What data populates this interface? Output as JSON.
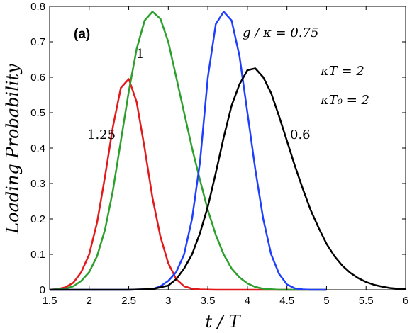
{
  "chart_data": {
    "type": "line",
    "panel_label": "(a)",
    "xlabel": "t / T",
    "ylabel": "Loading Probability",
    "xlim": [
      1.5,
      6
    ],
    "ylim": [
      0,
      0.8
    ],
    "xticks": [
      "1.5",
      "2",
      "2.5",
      "3",
      "3.5",
      "4",
      "4.5",
      "5",
      "5.5",
      "6"
    ],
    "yticks": [
      "0",
      "0.1",
      "0.2",
      "0.3",
      "0.4",
      "0.5",
      "0.6",
      "0.7",
      "0.8"
    ],
    "grid": false,
    "params": [
      "κT = 2",
      "κT₀ = 2"
    ],
    "series": [
      {
        "name": "1.25",
        "color": "#e31a1c",
        "points": [
          [
            1.5,
            0
          ],
          [
            1.6,
            0.002
          ],
          [
            1.7,
            0.007
          ],
          [
            1.8,
            0.02
          ],
          [
            1.9,
            0.05
          ],
          [
            2.0,
            0.1
          ],
          [
            2.1,
            0.19
          ],
          [
            2.2,
            0.32
          ],
          [
            2.3,
            0.46
          ],
          [
            2.4,
            0.57
          ],
          [
            2.5,
            0.595
          ],
          [
            2.6,
            0.53
          ],
          [
            2.7,
            0.4
          ],
          [
            2.8,
            0.26
          ],
          [
            2.9,
            0.15
          ],
          [
            3.0,
            0.075
          ],
          [
            3.1,
            0.03
          ],
          [
            3.2,
            0.01
          ],
          [
            3.3,
            0.003
          ],
          [
            3.4,
            0.001
          ],
          [
            3.6,
            0
          ],
          [
            4.0,
            0
          ],
          [
            4.5,
            0
          ],
          [
            5.0,
            0
          ]
        ]
      },
      {
        "name": "1",
        "color": "#2ca02c",
        "points": [
          [
            1.5,
            0
          ],
          [
            1.7,
            0.003
          ],
          [
            1.8,
            0.01
          ],
          [
            1.9,
            0.025
          ],
          [
            2.0,
            0.05
          ],
          [
            2.1,
            0.095
          ],
          [
            2.2,
            0.17
          ],
          [
            2.3,
            0.28
          ],
          [
            2.4,
            0.42
          ],
          [
            2.5,
            0.56
          ],
          [
            2.6,
            0.68
          ],
          [
            2.7,
            0.76
          ],
          [
            2.8,
            0.785
          ],
          [
            2.9,
            0.765
          ],
          [
            3.0,
            0.7
          ],
          [
            3.1,
            0.6
          ],
          [
            3.2,
            0.5
          ],
          [
            3.3,
            0.4
          ],
          [
            3.4,
            0.31
          ],
          [
            3.5,
            0.225
          ],
          [
            3.6,
            0.155
          ],
          [
            3.7,
            0.1
          ],
          [
            3.8,
            0.06
          ],
          [
            3.9,
            0.035
          ],
          [
            4.0,
            0.018
          ],
          [
            4.1,
            0.008
          ],
          [
            4.2,
            0.003
          ],
          [
            4.4,
            0
          ],
          [
            5.0,
            0
          ]
        ]
      },
      {
        "name": "g / κ = 0.75",
        "color": "#1f3fff",
        "points": [
          [
            1.5,
            0
          ],
          [
            2.5,
            0
          ],
          [
            2.8,
            0.002
          ],
          [
            2.9,
            0.01
          ],
          [
            3.0,
            0.025
          ],
          [
            3.1,
            0.05
          ],
          [
            3.2,
            0.1
          ],
          [
            3.3,
            0.2
          ],
          [
            3.4,
            0.36
          ],
          [
            3.5,
            0.6
          ],
          [
            3.6,
            0.75
          ],
          [
            3.7,
            0.785
          ],
          [
            3.8,
            0.76
          ],
          [
            3.9,
            0.66
          ],
          [
            4.0,
            0.5
          ],
          [
            4.1,
            0.34
          ],
          [
            4.2,
            0.2
          ],
          [
            4.3,
            0.1
          ],
          [
            4.4,
            0.045
          ],
          [
            4.5,
            0.015
          ],
          [
            4.6,
            0.004
          ],
          [
            4.7,
            0.001
          ],
          [
            4.8,
            0
          ],
          [
            5.0,
            0
          ]
        ]
      },
      {
        "name": "0.6",
        "color": "#000000",
        "points": [
          [
            1.5,
            0
          ],
          [
            2.5,
            0
          ],
          [
            2.8,
            0.002
          ],
          [
            3.0,
            0.012
          ],
          [
            3.1,
            0.03
          ],
          [
            3.2,
            0.06
          ],
          [
            3.3,
            0.1
          ],
          [
            3.4,
            0.16
          ],
          [
            3.5,
            0.235
          ],
          [
            3.6,
            0.33
          ],
          [
            3.7,
            0.43
          ],
          [
            3.8,
            0.52
          ],
          [
            3.9,
            0.58
          ],
          [
            4.0,
            0.62
          ],
          [
            4.1,
            0.625
          ],
          [
            4.2,
            0.6
          ],
          [
            4.3,
            0.555
          ],
          [
            4.4,
            0.49
          ],
          [
            4.5,
            0.42
          ],
          [
            4.6,
            0.35
          ],
          [
            4.7,
            0.285
          ],
          [
            4.8,
            0.225
          ],
          [
            4.9,
            0.175
          ],
          [
            5.0,
            0.13
          ],
          [
            5.1,
            0.095
          ],
          [
            5.2,
            0.068
          ],
          [
            5.3,
            0.048
          ],
          [
            5.4,
            0.033
          ],
          [
            5.5,
            0.022
          ],
          [
            5.6,
            0.014
          ],
          [
            5.7,
            0.009
          ],
          [
            5.8,
            0.005
          ],
          [
            5.9,
            0.003
          ],
          [
            6.0,
            0.002
          ]
        ]
      }
    ],
    "annotations": [
      {
        "text": "1.25",
        "x": 2.0,
        "y": 0.47
      },
      {
        "text": "1",
        "x": 2.38,
        "y": 0.72
      },
      {
        "text": "g / κ = 0.75",
        "x": 4.14,
        "y": 0.77
      },
      {
        "text": "0.6",
        "x": 4.65,
        "y": 0.47
      }
    ]
  }
}
